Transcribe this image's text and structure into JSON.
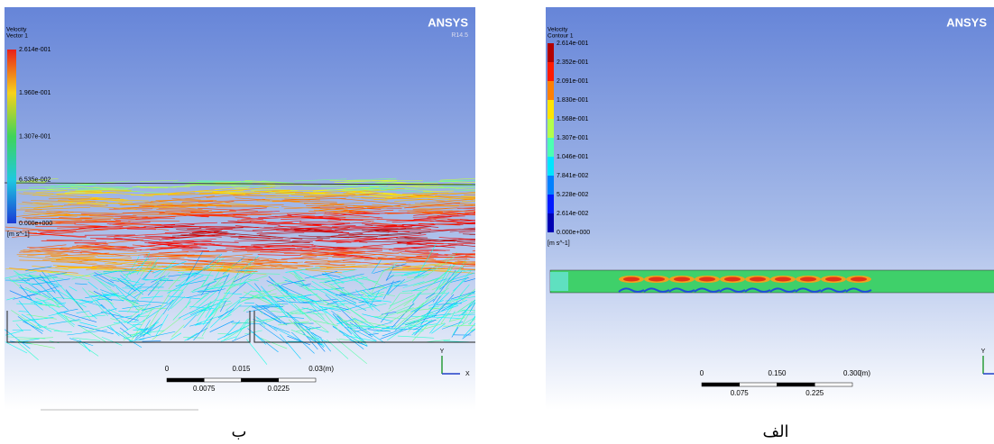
{
  "panels": [
    {
      "title": "Velocity",
      "subtitle": "Vector 1",
      "legend_labels": [
        "2.614e-001",
        "1.960e-001",
        "1.307e-001",
        "6.535e-002",
        "0.000e+000"
      ],
      "unit": "[m s^-1]",
      "brand": "ANSYS",
      "version": "R14.5",
      "scale_top": [
        "0",
        "0.015",
        "0.03"
      ],
      "scale_unit": "(m)",
      "scale_bottom": [
        "0.0075",
        "0.0225"
      ],
      "axis_labels": [
        "Y",
        "X"
      ],
      "caption": "ب"
    },
    {
      "title": "Velocity",
      "subtitle": "Contour 1",
      "legend_labels": [
        "2.614e-001",
        "2.352e-001",
        "2.091e-001",
        "1.830e-001",
        "1.568e-001",
        "1.307e-001",
        "1.046e-001",
        "7.841e-002",
        "5.228e-002",
        "2.614e-002",
        "0.000e+000"
      ],
      "unit": "[m s^-1]",
      "brand": "ANSYS",
      "scale_top": [
        "0",
        "0.150",
        "0.300"
      ],
      "scale_unit": "(m)",
      "scale_bottom": [
        "0.075",
        "0.225"
      ],
      "axis_labels": [
        "Y"
      ],
      "caption": "الف"
    }
  ]
}
